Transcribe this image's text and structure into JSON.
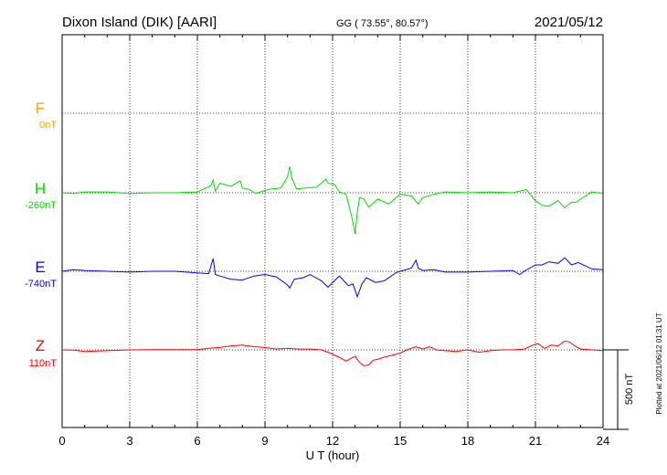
{
  "header": {
    "station": "Dixon Island (DIK)  [AARI]",
    "coords": "GG ( 73.55°,  80.57°)",
    "date": "2021/05/12"
  },
  "footer": {
    "plotted": "Plotted at 2021/06/12 01:31  UT"
  },
  "scale_bar": {
    "label": "500 nT",
    "value_nT": 500
  },
  "colors": {
    "F": "#ffa500",
    "H": "#00dd00",
    "E": "#0000ff",
    "Z": "#ff0000",
    "grid": "#000000"
  },
  "chart_data": {
    "type": "line",
    "xlabel": "U T (hour)",
    "xlim": [
      0,
      24
    ],
    "xticks": [
      "0",
      "3",
      "6",
      "9",
      "12",
      "15",
      "18",
      "21",
      "24"
    ],
    "grid": true,
    "series": [
      {
        "name": "F",
        "baseline_label": "0nT",
        "x": [],
        "y": []
      },
      {
        "name": "H",
        "baseline_label": "-260nT",
        "x": [
          0,
          0.5,
          1,
          2,
          3,
          4,
          5,
          6,
          6.6,
          6.7,
          6.8,
          7,
          7.5,
          7.9,
          8,
          8.3,
          8.6,
          9,
          9.3,
          9.7,
          10,
          10.1,
          10.2,
          10.4,
          10.8,
          11.3,
          11.7,
          11.8,
          12.1,
          12.3,
          12.6,
          12.9,
          13.0,
          13.1,
          13.2,
          13.4,
          13.6,
          14,
          14.5,
          15,
          15.5,
          15.8,
          16,
          16.5,
          17,
          18,
          19,
          20,
          20.6,
          21,
          21.3,
          21.6,
          22,
          22.3,
          22.6,
          22.8,
          23,
          23.5,
          24
        ],
        "y": [
          -260,
          -265,
          -255,
          -255,
          -265,
          -260,
          -260,
          -255,
          -215,
          -180,
          -250,
          -200,
          -220,
          -185,
          -230,
          -240,
          -265,
          -245,
          -235,
          -230,
          -160,
          -95,
          -170,
          -235,
          -230,
          -225,
          -175,
          -200,
          -210,
          -255,
          -270,
          -440,
          -520,
          -380,
          -290,
          -300,
          -350,
          -300,
          -330,
          -270,
          -280,
          -330,
          -290,
          -270,
          -255,
          -260,
          -255,
          -260,
          -240,
          -310,
          -340,
          -345,
          -310,
          -355,
          -320,
          -320,
          -300,
          -255,
          -265
        ]
      },
      {
        "name": "E",
        "baseline_label": "-740nT",
        "x": [
          0,
          0.5,
          1,
          2,
          3,
          4,
          5,
          6,
          6.5,
          6.7,
          6.8,
          7,
          7.5,
          8,
          8.5,
          9,
          9.5,
          10,
          10.1,
          10.3,
          10.7,
          11,
          11.5,
          11.8,
          12,
          12.3,
          12.5,
          12.7,
          12.9,
          13.1,
          13.3,
          13.5,
          13.9,
          14.3,
          14.8,
          15,
          15.5,
          15.7,
          15.8,
          16,
          16.5,
          17,
          18,
          19,
          20,
          20.3,
          20.5,
          21,
          21.3,
          21.6,
          22,
          22.3,
          22.6,
          22.9,
          23.5,
          24
        ],
        "y": [
          -740,
          -730,
          -735,
          -740,
          -745,
          -740,
          -740,
          -750,
          -755,
          -660,
          -760,
          -770,
          -790,
          -795,
          -770,
          -760,
          -775,
          -825,
          -845,
          -790,
          -780,
          -760,
          -800,
          -840,
          -810,
          -770,
          -800,
          -830,
          -820,
          -900,
          -820,
          -780,
          -810,
          -800,
          -750,
          -740,
          -720,
          -670,
          -720,
          -735,
          -730,
          -745,
          -745,
          -740,
          -735,
          -760,
          -740,
          -700,
          -700,
          -680,
          -690,
          -655,
          -700,
          -685,
          -725,
          -730
        ]
      },
      {
        "name": "Z",
        "baseline_label": "110nT",
        "x": [
          0,
          0.5,
          1,
          2,
          3,
          4,
          5,
          6,
          6.5,
          7,
          7.5,
          8,
          8.5,
          9,
          9.5,
          10,
          10.5,
          11,
          11.5,
          11.8,
          12.2,
          12.4,
          12.6,
          12.8,
          13,
          13.2,
          13.4,
          13.6,
          13.8,
          14,
          14.3,
          14.6,
          15,
          15.3,
          15.7,
          16,
          16.3,
          16.6,
          17,
          17.5,
          18,
          18.5,
          19,
          19.5,
          20,
          20.5,
          20.9,
          21.1,
          21.4,
          21.7,
          22,
          22.3,
          22.5,
          22.8,
          23,
          23.5,
          24
        ],
        "y": [
          110,
          108,
          100,
          105,
          110,
          112,
          112,
          112,
          120,
          125,
          135,
          140,
          130,
          125,
          115,
          120,
          115,
          115,
          110,
          95,
          70,
          55,
          40,
          55,
          70,
          30,
          10,
          15,
          45,
          50,
          65,
          75,
          90,
          110,
          130,
          115,
          130,
          110,
          105,
          100,
          110,
          95,
          105,
          110,
          110,
          115,
          140,
          150,
          120,
          140,
          135,
          165,
          160,
          130,
          115,
          110,
          105
        ]
      }
    ]
  }
}
